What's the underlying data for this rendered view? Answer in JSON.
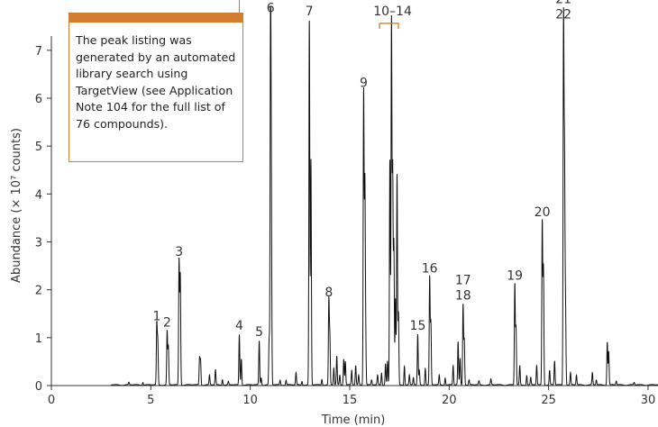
{
  "note": {
    "text": "The peak listing was generated by an automated library search using TargetView (see Application Note 104 for the full list of 76 compounds).",
    "accent_color": "#d07d30"
  },
  "chart_data": {
    "type": "line",
    "title": "",
    "xlabel": "Time (min)",
    "ylabel": "Abundance (× 10⁷ counts)",
    "xlim": [
      0,
      30.5
    ],
    "ylim": [
      0,
      7.9
    ],
    "x_ticks": [
      0,
      5,
      10,
      15,
      20,
      25,
      30
    ],
    "y_ticks": [
      0,
      1,
      2,
      3,
      4,
      5,
      6,
      7
    ],
    "grid": false,
    "line_color": "#111111",
    "bracket_color": "#d07d30",
    "peaks": [
      {
        "t": 3.9,
        "h": 0.05
      },
      {
        "t": 4.6,
        "h": 0.06
      },
      {
        "t": 5.3,
        "h": 1.25
      },
      {
        "t": 5.35,
        "h": 0.9
      },
      {
        "t": 5.82,
        "h": 1.12
      },
      {
        "t": 5.88,
        "h": 0.8
      },
      {
        "t": 6.42,
        "h": 2.6
      },
      {
        "t": 6.48,
        "h": 2.3
      },
      {
        "t": 7.45,
        "h": 0.55
      },
      {
        "t": 7.5,
        "h": 0.5
      },
      {
        "t": 7.95,
        "h": 0.2
      },
      {
        "t": 8.25,
        "h": 0.32
      },
      {
        "t": 8.6,
        "h": 0.12
      },
      {
        "t": 8.9,
        "h": 0.07
      },
      {
        "t": 9.45,
        "h": 1.05
      },
      {
        "t": 9.55,
        "h": 0.55
      },
      {
        "t": 10.45,
        "h": 0.92
      },
      {
        "t": 10.55,
        "h": 0.15
      },
      {
        "t": 10.95,
        "h": 0.95
      },
      {
        "t": 11.02,
        "h": 7.68
      },
      {
        "t": 11.06,
        "h": 3.4
      },
      {
        "t": 11.5,
        "h": 0.1
      },
      {
        "t": 11.8,
        "h": 0.1
      },
      {
        "t": 12.3,
        "h": 0.25
      },
      {
        "t": 12.6,
        "h": 0.08
      },
      {
        "t": 12.97,
        "h": 7.62
      },
      {
        "t": 13.05,
        "h": 4.7
      },
      {
        "t": 13.6,
        "h": 0.12
      },
      {
        "t": 13.95,
        "h": 1.75
      },
      {
        "t": 14.0,
        "h": 1.0
      },
      {
        "t": 14.2,
        "h": 0.35
      },
      {
        "t": 14.35,
        "h": 0.6
      },
      {
        "t": 14.5,
        "h": 0.2
      },
      {
        "t": 14.7,
        "h": 0.55
      },
      {
        "t": 14.78,
        "h": 0.5
      },
      {
        "t": 15.1,
        "h": 0.3
      },
      {
        "t": 15.3,
        "h": 0.4
      },
      {
        "t": 15.45,
        "h": 0.2
      },
      {
        "t": 15.7,
        "h": 6.12
      },
      {
        "t": 15.76,
        "h": 4.1
      },
      {
        "t": 15.8,
        "h": 1.05
      },
      {
        "t": 16.1,
        "h": 0.1
      },
      {
        "t": 16.4,
        "h": 0.2
      },
      {
        "t": 16.6,
        "h": 0.25
      },
      {
        "t": 16.8,
        "h": 0.45
      },
      {
        "t": 16.9,
        "h": 0.5
      },
      {
        "t": 17.02,
        "h": 4.7
      },
      {
        "t": 17.1,
        "h": 7.6
      },
      {
        "t": 17.16,
        "h": 4.45
      },
      {
        "t": 17.22,
        "h": 2.95
      },
      {
        "t": 17.3,
        "h": 1.8
      },
      {
        "t": 17.38,
        "h": 4.4
      },
      {
        "t": 17.45,
        "h": 1.5
      },
      {
        "t": 17.75,
        "h": 0.4
      },
      {
        "t": 18.0,
        "h": 0.2
      },
      {
        "t": 18.2,
        "h": 0.15
      },
      {
        "t": 18.42,
        "h": 1.05
      },
      {
        "t": 18.5,
        "h": 0.3
      },
      {
        "t": 18.8,
        "h": 0.35
      },
      {
        "t": 19.02,
        "h": 2.25
      },
      {
        "t": 19.08,
        "h": 1.3
      },
      {
        "t": 19.5,
        "h": 0.2
      },
      {
        "t": 19.8,
        "h": 0.15
      },
      {
        "t": 20.2,
        "h": 0.4
      },
      {
        "t": 20.45,
        "h": 0.9
      },
      {
        "t": 20.55,
        "h": 0.55
      },
      {
        "t": 20.7,
        "h": 1.68
      },
      {
        "t": 20.76,
        "h": 0.95
      },
      {
        "t": 21.0,
        "h": 0.1
      },
      {
        "t": 21.5,
        "h": 0.08
      },
      {
        "t": 22.1,
        "h": 0.12
      },
      {
        "t": 23.3,
        "h": 2.1
      },
      {
        "t": 23.36,
        "h": 1.2
      },
      {
        "t": 23.55,
        "h": 0.4
      },
      {
        "t": 23.9,
        "h": 0.2
      },
      {
        "t": 24.1,
        "h": 0.15
      },
      {
        "t": 24.4,
        "h": 0.4
      },
      {
        "t": 24.68,
        "h": 3.42
      },
      {
        "t": 24.74,
        "h": 2.45
      },
      {
        "t": 25.05,
        "h": 0.3
      },
      {
        "t": 25.3,
        "h": 0.5
      },
      {
        "t": 25.75,
        "h": 7.55
      },
      {
        "t": 25.8,
        "h": 4.45
      },
      {
        "t": 25.85,
        "h": 1.6
      },
      {
        "t": 26.1,
        "h": 0.25
      },
      {
        "t": 26.4,
        "h": 0.2
      },
      {
        "t": 27.2,
        "h": 0.25
      },
      {
        "t": 27.4,
        "h": 0.1
      },
      {
        "t": 27.95,
        "h": 0.9
      },
      {
        "t": 28.02,
        "h": 0.7
      },
      {
        "t": 28.4,
        "h": 0.08
      },
      {
        "t": 29.3,
        "h": 0.05
      }
    ],
    "annotations": [
      {
        "label": "1",
        "t": 5.3,
        "h": 1.25
      },
      {
        "label": "2",
        "t": 5.82,
        "h": 1.12
      },
      {
        "label": "3",
        "t": 6.42,
        "h": 2.6
      },
      {
        "label": "4",
        "t": 9.45,
        "h": 1.05
      },
      {
        "label": "5",
        "t": 10.45,
        "h": 0.92
      },
      {
        "label": "6",
        "t": 11.02,
        "h": 7.68
      },
      {
        "label": "7",
        "t": 12.97,
        "h": 7.62
      },
      {
        "label": "8",
        "t": 13.95,
        "h": 1.75
      },
      {
        "label": "9",
        "t": 15.7,
        "h": 6.12
      },
      {
        "label": "10–14",
        "t": 17.1,
        "h": 7.6,
        "bracket": [
          16.5,
          17.45
        ]
      },
      {
        "label": "15",
        "t": 18.42,
        "h": 1.05
      },
      {
        "label": "16",
        "t": 19.02,
        "h": 2.25
      },
      {
        "label": "17",
        "t": 20.7,
        "h": 1.68,
        "line": 2
      },
      {
        "label": "18",
        "t": 20.7,
        "h": 1.68,
        "line": 1
      },
      {
        "label": "19",
        "t": 23.3,
        "h": 2.1
      },
      {
        "label": "20",
        "t": 24.68,
        "h": 3.42
      },
      {
        "label": "21",
        "t": 25.75,
        "h": 7.55,
        "line": 2
      },
      {
        "label": "22",
        "t": 25.75,
        "h": 7.55,
        "line": 1
      }
    ]
  }
}
